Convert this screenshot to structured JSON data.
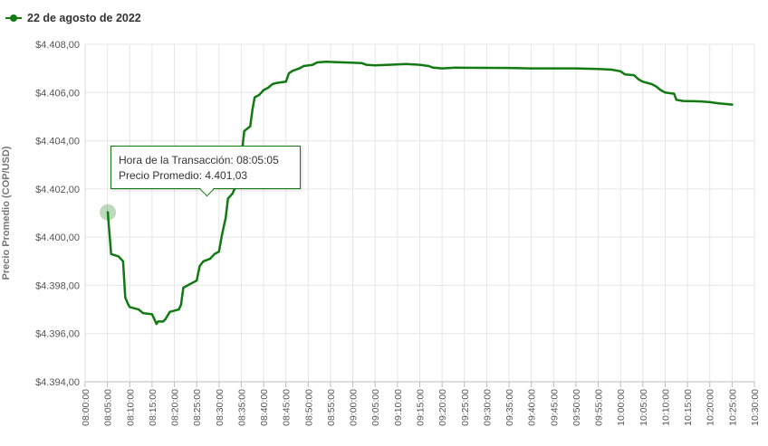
{
  "legend": {
    "label": "22 de agosto de 2022",
    "color": "#137a13"
  },
  "tooltip": {
    "line1": "Hora de la Transacción: 08:05:05",
    "line2": "Precio Promedio: 4.401,03"
  },
  "chart_data": {
    "type": "line",
    "ylabel": "Precio Promedio (COP/USD)",
    "ylim": [
      4394,
      4408
    ],
    "xlim": [
      "08:00",
      "10:30"
    ],
    "grid": true,
    "legend_position": "top-left",
    "line_color": "#137a13",
    "y_ticks": [
      "$4.408,00",
      "$4.406,00",
      "$4.404,00",
      "$4.402,00",
      "$4.400,00",
      "$4.398,00",
      "$4.396,00",
      "$4.394,00"
    ],
    "x_ticks": [
      "08:00:00",
      "08:05:00",
      "08:10:00",
      "08:15:00",
      "08:20:00",
      "08:25:00",
      "08:30:00",
      "08:35:00",
      "08:40:00",
      "08:45:00",
      "08:50:00",
      "08:55:00",
      "09:00:00",
      "09:05:00",
      "09:10:00",
      "09:15:00",
      "09:20:00",
      "09:25:00",
      "09:30:00",
      "09:35:00",
      "09:40:00",
      "09:45:00",
      "09:50:00",
      "09:55:00",
      "10:00:00",
      "10:05:00",
      "10:10:00",
      "10:15:00",
      "10:20:00",
      "10:25:00",
      "10:30:00"
    ],
    "highlight": {
      "x": "08:05:05",
      "y": 4401.03
    },
    "series": [
      {
        "values": [
          [
            "08:05:05",
            4401.03
          ],
          [
            "08:05:50",
            4399.3
          ],
          [
            "08:07:30",
            4399.2
          ],
          [
            "08:08:30",
            4399.0
          ],
          [
            "08:09:00",
            4397.5
          ],
          [
            "08:09:40",
            4397.2
          ],
          [
            "08:10:00",
            4397.1
          ],
          [
            "08:12:00",
            4397.0
          ],
          [
            "08:13:00",
            4396.85
          ],
          [
            "08:15:00",
            4396.8
          ],
          [
            "08:15:30",
            4396.6
          ],
          [
            "08:16:00",
            4396.4
          ],
          [
            "08:16:20",
            4396.5
          ],
          [
            "08:17:30",
            4396.5
          ],
          [
            "08:18:00",
            4396.6
          ],
          [
            "08:19:00",
            4396.9
          ],
          [
            "08:21:00",
            4397.0
          ],
          [
            "08:21:30",
            4397.2
          ],
          [
            "08:22:00",
            4397.9
          ],
          [
            "08:23:00",
            4398.0
          ],
          [
            "08:24:00",
            4398.1
          ],
          [
            "08:25:00",
            4398.2
          ],
          [
            "08:25:40",
            4398.8
          ],
          [
            "08:26:30",
            4399.0
          ],
          [
            "08:28:00",
            4399.1
          ],
          [
            "08:29:00",
            4399.3
          ],
          [
            "08:30:00",
            4399.4
          ],
          [
            "08:30:40",
            4400.1
          ],
          [
            "08:31:30",
            4400.8
          ],
          [
            "08:32:00",
            4401.6
          ],
          [
            "08:33:00",
            4401.8
          ],
          [
            "08:34:00",
            4402.2
          ],
          [
            "08:34:30",
            4402.6
          ],
          [
            "08:35:00",
            4403.3
          ],
          [
            "08:35:40",
            4404.4
          ],
          [
            "08:37:00",
            4404.6
          ],
          [
            "08:37:30",
            4405.3
          ],
          [
            "08:38:00",
            4405.8
          ],
          [
            "08:39:00",
            4405.9
          ],
          [
            "08:40:00",
            4406.1
          ],
          [
            "08:41:00",
            4406.2
          ],
          [
            "08:42:00",
            4406.35
          ],
          [
            "08:43:00",
            4406.4
          ],
          [
            "08:45:00",
            4406.45
          ],
          [
            "08:45:40",
            4406.8
          ],
          [
            "08:46:30",
            4406.9
          ],
          [
            "08:48:00",
            4407.0
          ],
          [
            "08:49:00",
            4407.1
          ],
          [
            "08:51:00",
            4407.15
          ],
          [
            "08:52:00",
            4407.25
          ],
          [
            "08:54:00",
            4407.28
          ],
          [
            "08:58:00",
            4407.25
          ],
          [
            "09:02:00",
            4407.22
          ],
          [
            "09:03:00",
            4407.15
          ],
          [
            "09:05:00",
            4407.13
          ],
          [
            "09:08:00",
            4407.15
          ],
          [
            "09:12:00",
            4407.18
          ],
          [
            "09:15:00",
            4407.15
          ],
          [
            "09:17:00",
            4407.1
          ],
          [
            "09:18:00",
            4407.03
          ],
          [
            "09:20:00",
            4407.0
          ],
          [
            "09:23:00",
            4407.03
          ],
          [
            "09:35:00",
            4407.02
          ],
          [
            "09:40:00",
            4407.0
          ],
          [
            "09:48:00",
            4407.0
          ],
          [
            "09:50:00",
            4407.0
          ],
          [
            "09:55:00",
            4406.98
          ],
          [
            "09:58:00",
            4406.95
          ],
          [
            "10:00:00",
            4406.88
          ],
          [
            "10:01:00",
            4406.75
          ],
          [
            "10:03:00",
            4406.72
          ],
          [
            "10:04:00",
            4406.55
          ],
          [
            "10:05:00",
            4406.45
          ],
          [
            "10:07:00",
            4406.35
          ],
          [
            "10:08:00",
            4406.25
          ],
          [
            "10:09:00",
            4406.1
          ],
          [
            "10:10:00",
            4406.0
          ],
          [
            "10:12:00",
            4405.95
          ],
          [
            "10:12:30",
            4405.7
          ],
          [
            "10:14:00",
            4405.65
          ],
          [
            "10:18:00",
            4405.63
          ],
          [
            "10:20:00",
            4405.6
          ],
          [
            "10:22:00",
            4405.55
          ],
          [
            "10:25:00",
            4405.5
          ]
        ]
      }
    ]
  }
}
